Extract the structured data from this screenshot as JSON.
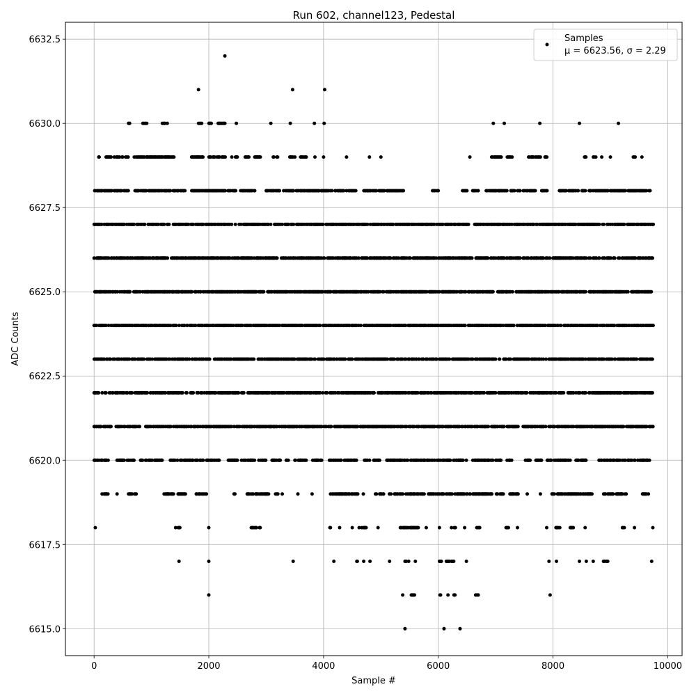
{
  "chart_data": {
    "type": "scatter",
    "title": "Run 602, channel123, Pedestal",
    "xlabel": "Sample #",
    "ylabel": "ADC Counts",
    "xlim": [
      -500,
      10250
    ],
    "ylim": [
      6614.2,
      6633.0
    ],
    "xticks": [
      0,
      2000,
      4000,
      6000,
      8000,
      10000
    ],
    "xtick_labels": [
      "0",
      "2000",
      "4000",
      "6000",
      "8000",
      "10000"
    ],
    "yticks": [
      6615.0,
      6617.5,
      6620.0,
      6622.5,
      6625.0,
      6627.5,
      6630.0,
      6632.5
    ],
    "ytick_labels": [
      "6615.0",
      "6617.5",
      "6620.0",
      "6622.5",
      "6625.0",
      "6627.5",
      "6630.0",
      "6632.5"
    ],
    "grid": true,
    "legend_position": "top-right",
    "colors": {
      "marker": "#000000",
      "grid": "#b0b0b0",
      "axis": "#000000"
    },
    "series": [
      {
        "name": "Samples",
        "label_line2": "μ = 6623.56, σ = 2.29",
        "n_samples": 9750,
        "level_ranges": {
          "6615": [
            [
              5420,
              5420
            ],
            [
              6100,
              6100
            ],
            [
              6380,
              6380
            ]
          ],
          "6616": [
            [
              2000,
              2000
            ],
            [
              5380,
              5380
            ],
            [
              5530,
              5600
            ],
            [
              6030,
              6040
            ],
            [
              6170,
              6170
            ],
            [
              6250,
              6300
            ],
            [
              6650,
              6700
            ],
            [
              7950,
              7950
            ]
          ],
          "6617": [
            [
              1480,
              1480
            ],
            [
              2000,
              2000
            ],
            [
              3470,
              3470
            ],
            [
              4180,
              4180
            ],
            [
              4580,
              4600
            ],
            [
              4700,
              4700
            ],
            [
              4810,
              4810
            ],
            [
              5150,
              5150
            ],
            [
              5420,
              5490
            ],
            [
              5600,
              5600
            ],
            [
              6020,
              6060
            ],
            [
              6140,
              6280
            ],
            [
              6490,
              6490
            ],
            [
              7930,
              7930
            ],
            [
              8060,
              8060
            ],
            [
              8460,
              8460
            ],
            [
              8580,
              8580
            ],
            [
              8700,
              8700
            ],
            [
              8880,
              8960
            ],
            [
              9720,
              9720
            ]
          ],
          "6618": [
            [
              20,
              20
            ],
            [
              1420,
              1500
            ],
            [
              2000,
              2000
            ],
            [
              2740,
              2900
            ],
            [
              4100,
              4180
            ],
            [
              4280,
              4280
            ],
            [
              4500,
              4500
            ],
            [
              4620,
              4750
            ],
            [
              4950,
              4950
            ],
            [
              5320,
              5650
            ],
            [
              5790,
              5790
            ],
            [
              6020,
              6050
            ],
            [
              6210,
              6300
            ],
            [
              6460,
              6460
            ],
            [
              6670,
              6740
            ],
            [
              7180,
              7230
            ],
            [
              7380,
              7380
            ],
            [
              7890,
              7890
            ],
            [
              8050,
              8130
            ],
            [
              8300,
              8360
            ],
            [
              8560,
              8600
            ],
            [
              9210,
              9260
            ],
            [
              9420,
              9420
            ],
            [
              9740,
              9740
            ]
          ],
          "6619": [
            [
              140,
              260
            ],
            [
              400,
              400
            ],
            [
              600,
              740
            ],
            [
              1220,
              1600
            ],
            [
              1780,
              1960
            ],
            [
              2420,
              2460
            ],
            [
              2660,
              3050
            ],
            [
              3150,
              3220
            ],
            [
              3280,
              3280
            ],
            [
              3540,
              3560
            ],
            [
              3800,
              3800
            ],
            [
              4100,
              4600
            ],
            [
              4680,
              4720
            ],
            [
              4870,
              5060
            ],
            [
              5140,
              5760
            ],
            [
              5830,
              6950
            ],
            [
              7000,
              7150
            ],
            [
              7250,
              7400
            ],
            [
              7550,
              7550
            ],
            [
              7780,
              7780
            ],
            [
              7960,
              8700
            ],
            [
              8860,
              9300
            ],
            [
              9550,
              9700
            ]
          ],
          "6620": [
            [
              0,
              250
            ],
            [
              400,
              700
            ],
            [
              800,
              1200
            ],
            [
              1330,
              1530
            ],
            [
              1570,
              1910
            ],
            [
              1960,
              2200
            ],
            [
              2340,
              2500
            ],
            [
              2540,
              3000
            ],
            [
              3100,
              3250
            ],
            [
              3350,
              3400
            ],
            [
              3500,
              3700
            ],
            [
              3800,
              4000
            ],
            [
              4100,
              4600
            ],
            [
              4700,
              5000
            ],
            [
              5100,
              6500
            ],
            [
              6600,
              7100
            ],
            [
              7200,
              7300
            ],
            [
              7500,
              7600
            ],
            [
              7700,
              7800
            ],
            [
              7900,
              8300
            ],
            [
              8400,
              8600
            ],
            [
              8800,
              9700
            ]
          ],
          "6621": [
            [
              0,
              300
            ],
            [
              350,
              800
            ],
            [
              900,
              9750
            ]
          ],
          "6622": [
            [
              0,
              9750
            ]
          ],
          "6623": [
            [
              0,
              9750
            ]
          ],
          "6624": [
            [
              0,
              9750
            ]
          ],
          "6625": [
            [
              0,
              9750
            ]
          ],
          "6626": [
            [
              0,
              9750
            ]
          ],
          "6627": [
            [
              0,
              9750
            ]
          ],
          "6628": [
            [
              0,
              600
            ],
            [
              700,
              1600
            ],
            [
              1700,
              2800
            ],
            [
              3000,
              4600
            ],
            [
              4700,
              5400
            ],
            [
              5900,
              6000
            ],
            [
              6400,
              6500
            ],
            [
              6600,
              6700
            ],
            [
              6800,
              7700
            ],
            [
              7800,
              7900
            ],
            [
              8100,
              9700
            ]
          ],
          "6629": [
            [
              80,
              100
            ],
            [
              200,
              500
            ],
            [
              550,
              600
            ],
            [
              700,
              1400
            ],
            [
              1700,
              1900
            ],
            [
              2000,
              2300
            ],
            [
              2400,
              2500
            ],
            [
              2600,
              2700
            ],
            [
              2800,
              2900
            ],
            [
              3100,
              3200
            ],
            [
              3400,
              3500
            ],
            [
              3600,
              3700
            ],
            [
              3850,
              3850
            ],
            [
              4000,
              4000
            ],
            [
              4400,
              4400
            ],
            [
              4800,
              4800
            ],
            [
              5000,
              5000
            ],
            [
              6550,
              6550
            ],
            [
              6900,
              7100
            ],
            [
              7200,
              7300
            ],
            [
              7550,
              7800
            ],
            [
              7850,
              7900
            ],
            [
              8550,
              8600
            ],
            [
              8650,
              8750
            ],
            [
              8850,
              8850
            ],
            [
              9000,
              9000
            ],
            [
              9400,
              9450
            ],
            [
              9550,
              9550
            ]
          ],
          "6630": [
            [
              600,
              650
            ],
            [
              850,
              920
            ],
            [
              1190,
              1280
            ],
            [
              1820,
              1880
            ],
            [
              2000,
              2050
            ],
            [
              2160,
              2290
            ],
            [
              2480,
              2480
            ],
            [
              3080,
              3080
            ],
            [
              3420,
              3420
            ],
            [
              3840,
              3840
            ],
            [
              4010,
              4010
            ],
            [
              6960,
              6960
            ],
            [
              7150,
              7150
            ],
            [
              7770,
              7770
            ],
            [
              8460,
              8460
            ],
            [
              9140,
              9140
            ]
          ],
          "6631": [
            [
              1820,
              1820
            ],
            [
              3460,
              3460
            ],
            [
              4020,
              4020
            ]
          ],
          "6632": [
            [
              2280,
              2280
            ]
          ]
        }
      }
    ]
  }
}
